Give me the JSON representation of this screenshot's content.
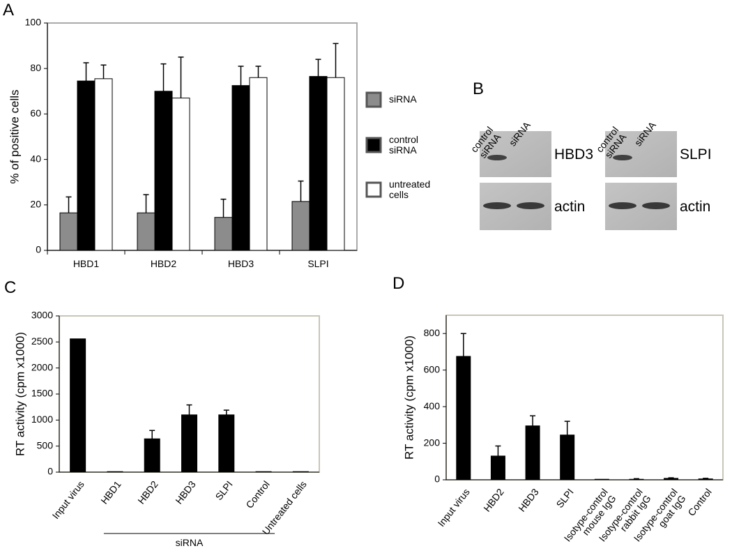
{
  "chart_data": [
    {
      "panel": "A",
      "type": "bar",
      "ylabel": "% of positive cells",
      "categories": [
        "HBD1",
        "HBD2",
        "HBD3",
        "SLPI"
      ],
      "series": [
        {
          "name": "siRNA",
          "color": "#8c8c8c",
          "values": [
            16.5,
            16.5,
            14.5,
            21.5
          ],
          "errors": [
            7,
            8,
            8,
            9
          ]
        },
        {
          "name": "control siRNA",
          "color": "#000000",
          "values": [
            74.5,
            70,
            72.5,
            76.5
          ],
          "errors": [
            8,
            12,
            8.5,
            7.5
          ]
        },
        {
          "name": "untreated cells",
          "color": "#ffffff",
          "values": [
            75.5,
            67,
            76,
            76
          ],
          "errors": [
            6,
            18,
            5,
            15
          ]
        }
      ],
      "ylim": [
        0,
        100
      ],
      "yticks": [
        0,
        20,
        40,
        60,
        80,
        100
      ],
      "legend": "right"
    },
    {
      "panel": "C",
      "type": "bar",
      "ylabel": "RT activity (cpm x1000)",
      "categories": [
        "Input virus",
        "HBD1",
        "HBD2",
        "HBD3",
        "SLPI",
        "Control",
        "Untreated cells"
      ],
      "values": [
        2560,
        10,
        640,
        1100,
        1100,
        10,
        10
      ],
      "errors": [
        null,
        null,
        160,
        190,
        90,
        null,
        null
      ],
      "color": "#000000",
      "annotation": "siRNA",
      "ylim": [
        0,
        3000
      ],
      "yticks": [
        0,
        500,
        1000,
        1500,
        2000,
        2500,
        3000
      ]
    },
    {
      "panel": "D",
      "type": "bar",
      "ylabel": "RT activity (cpm x1000)",
      "categories": [
        "Input virus",
        "HBD2",
        "HBD3",
        "SLPI",
        "Isotype-control mouse IgG",
        "Isotype-control rabbit IgG",
        "Isotype-control goat IgG",
        "Control"
      ],
      "values": [
        675,
        130,
        295,
        245,
        3,
        3,
        8,
        5
      ],
      "errors": [
        125,
        55,
        55,
        75,
        null,
        3,
        3,
        3
      ],
      "color": "#000000",
      "ylim": [
        0,
        900
      ],
      "yticks": [
        0,
        200,
        400,
        600,
        800
      ]
    }
  ],
  "blot": {
    "label": "B",
    "panels": [
      {
        "lanes": [
          "control siRNA",
          "siRNA"
        ],
        "rows": [
          "HBD3",
          "actin"
        ]
      },
      {
        "lanes": [
          "control siRNA",
          "siRNA"
        ],
        "rows": [
          "SLPI",
          "actin"
        ]
      }
    ]
  }
}
